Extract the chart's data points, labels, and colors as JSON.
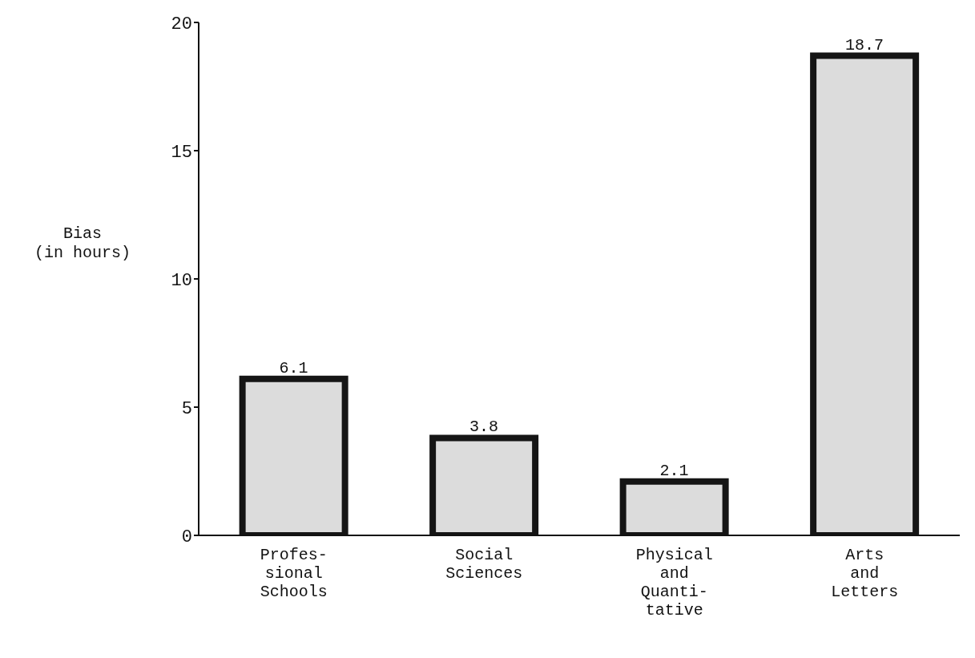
{
  "chart_data": {
    "type": "bar",
    "ylabel": "Bias\n(in hours)",
    "categories": [
      "Profes-\nsional\nSchools",
      "Social\nSciences",
      "Physical\nand\nQuanti-\ntative",
      "Arts\nand\nLetters"
    ],
    "values": [
      6.1,
      3.8,
      2.1,
      18.7
    ],
    "color": "#dcdcdc",
    "ylim": [
      0,
      20
    ],
    "yticks": [
      0,
      5,
      10,
      15,
      20
    ],
    "grid": false,
    "data_labels": true
  }
}
